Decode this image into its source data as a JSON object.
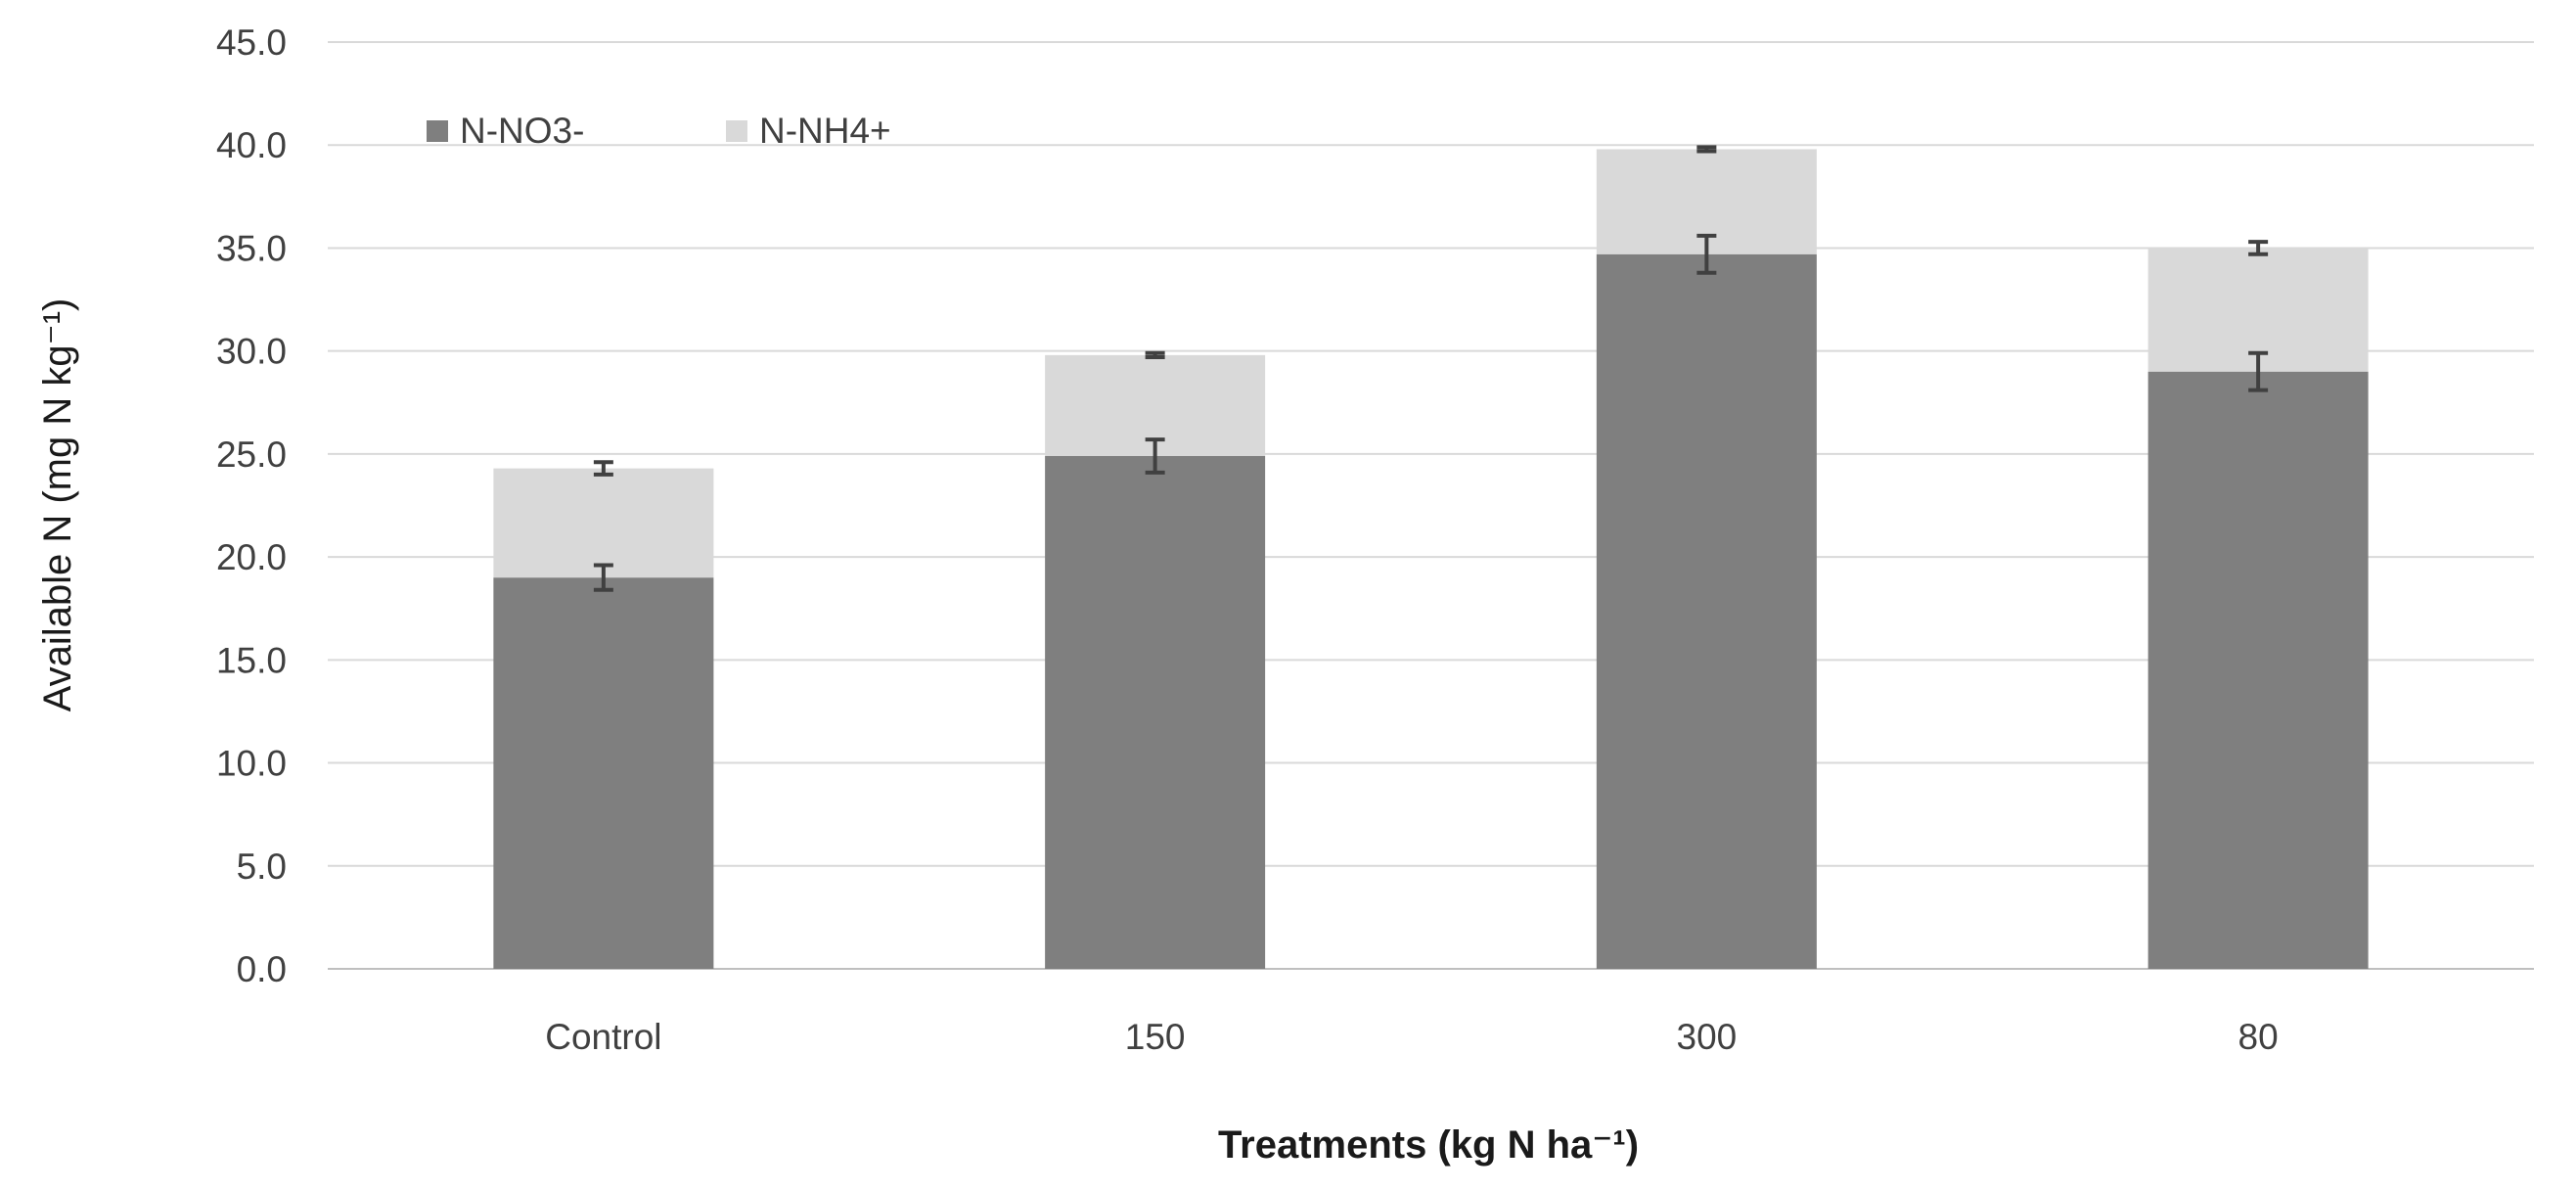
{
  "chart_data": {
    "type": "bar",
    "stacked": true,
    "title": "",
    "xlabel": "Treatments (kg N ha⁻¹)",
    "ylabel": "Available N (mg N kg⁻¹)",
    "categories": [
      "Control",
      "150",
      "300",
      "80"
    ],
    "series": [
      {
        "name": "N-NO3-",
        "color": "#7f7f7f",
        "values": [
          19.0,
          24.9,
          34.7,
          29.0
        ],
        "errors": [
          0.6,
          0.8,
          0.9,
          0.9
        ]
      },
      {
        "name": "N-NH4+",
        "color": "#d9d9d9",
        "values": [
          5.3,
          4.9,
          5.1,
          6.0
        ],
        "errors": [
          0.3,
          0.1,
          0.1,
          0.3
        ]
      }
    ],
    "ylim": [
      0,
      45
    ],
    "yticks": [
      "0.0",
      "5.0",
      "10.0",
      "15.0",
      "20.0",
      "25.0",
      "30.0",
      "35.0",
      "40.0",
      "45.0"
    ],
    "grid": true,
    "legend_position": "top-left",
    "colors": {
      "gridline": "#d9d9d9",
      "error_bar": "#404040"
    }
  }
}
